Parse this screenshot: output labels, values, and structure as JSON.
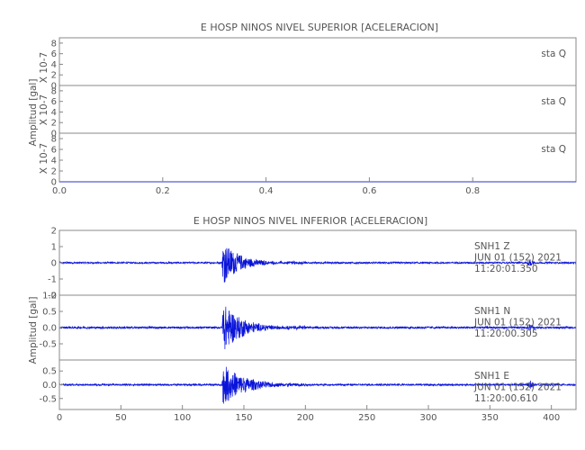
{
  "chart_data": [
    {
      "type": "line",
      "title": "E HOSP NINOS NIVEL SUPERIOR [ACELERACION]",
      "ylabel": "Amplitud [gal]",
      "xlim": [
        0,
        1
      ],
      "x_ticks": [
        "0.0",
        "0.2",
        "0.4",
        "0.6",
        "0.8"
      ],
      "y_scale_label": "X 10-7",
      "channels": [
        {
          "label": "sta Q",
          "ylim": [
            0,
            9
          ],
          "y_ticks": [
            "8",
            "6",
            "4",
            "2",
            "0"
          ],
          "values": []
        },
        {
          "label": "sta Q",
          "ylim": [
            0,
            9
          ],
          "y_ticks": [
            "8",
            "6",
            "4",
            "2",
            "0"
          ],
          "values": []
        },
        {
          "label": "sta Q",
          "ylim": [
            0,
            9
          ],
          "y_ticks": [
            "8",
            "6",
            "4",
            "2",
            "0"
          ],
          "values": []
        }
      ]
    },
    {
      "type": "line",
      "title": "E HOSP NINOS NIVEL INFERIOR [ACELERACION]",
      "ylabel": "Amplitud [gal]",
      "xlim": [
        0,
        420
      ],
      "x_ticks": [
        "0",
        "50",
        "100",
        "150",
        "200",
        "250",
        "300",
        "350",
        "400"
      ],
      "series_color": "#0a14d8",
      "channels": [
        {
          "ylim": [
            -2,
            2
          ],
          "y_ticks": [
            "2",
            "1",
            "0",
            "-1",
            "-2"
          ],
          "info": [
            "SNH1 Z",
            "JUN 01 (152) 2021",
            "11:20:01.350"
          ],
          "event": {
            "onset_s": 132,
            "peak": 1.4,
            "noise": 0.05,
            "decay_s": 14,
            "late_event_s": 383,
            "late_amp": 0.25
          }
        },
        {
          "ylim": [
            -1,
            1
          ],
          "y_ticks": [
            "1.0",
            "0.5",
            "0.0",
            "-0.5"
          ],
          "info": [
            "SNH1 N",
            "JUN 01 (152) 2021",
            "11:20:00.305"
          ],
          "event": {
            "onset_s": 132,
            "peak": 0.85,
            "noise": 0.03,
            "decay_s": 15,
            "late_event_s": 383,
            "late_amp": 0.12
          }
        },
        {
          "ylim": [
            -0.9,
            0.9
          ],
          "y_ticks": [
            "0.5",
            "0.0",
            "-0.5"
          ],
          "info": [
            "SNH1 E",
            "JUN 01 (152) 2021",
            "11:20:00.610"
          ],
          "event": {
            "onset_s": 132,
            "peak": 0.78,
            "noise": 0.03,
            "decay_s": 18,
            "late_event_s": 383,
            "late_amp": 0.15
          }
        }
      ]
    }
  ]
}
